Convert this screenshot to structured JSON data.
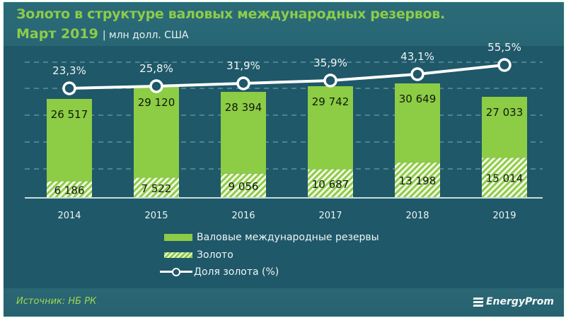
{
  "header": {
    "title": "Золото в структуре валовых международных резервов.",
    "subtitle": "Март 2019",
    "units": "| млн долл. США"
  },
  "footer": {
    "source": "Источник: НБ РК",
    "logo": "EnergyProm"
  },
  "legend": {
    "items": [
      {
        "label": "Валовые международные резервы",
        "swatch": "solid"
      },
      {
        "label": "Золото",
        "swatch": "hatched"
      },
      {
        "label": "Доля золота (%)",
        "swatch": "line-marker"
      }
    ]
  },
  "colors": {
    "background": "#1f5868",
    "header_band": "#2a6875",
    "title": "#8ccc4a",
    "reserves_bar": "#8dcc45",
    "gold_hatch_light": "#f3f8e8",
    "line": "#ffffff",
    "gridline": "#5f93a0"
  },
  "chart_data": {
    "type": "bar",
    "subtype": "stacked bar + line",
    "title": "Золото в структуре валовых международных резервов. Март 2019",
    "units": "млн долл. США",
    "xlabel": "",
    "ylabel": "",
    "categories": [
      "2014",
      "2015",
      "2016",
      "2017",
      "2018",
      "2019"
    ],
    "series": [
      {
        "name": "Золото",
        "type": "bar",
        "style": "hatched",
        "values": [
          6186,
          7522,
          9056,
          10687,
          13198,
          15014
        ],
        "labels": [
          "6 186",
          "7 522",
          "9 056",
          "10 687",
          "13 198",
          "15 014"
        ]
      },
      {
        "name": "Валовые международные резервы",
        "type": "bar",
        "style": "solid",
        "values": [
          26517,
          29120,
          28394,
          29742,
          30649,
          27033
        ],
        "labels": [
          "26 517",
          "29 120",
          "28 394",
          "29 742",
          "30 649",
          "27 033"
        ]
      },
      {
        "name": "Доля золота (%)",
        "type": "line",
        "values": [
          23.3,
          25.8,
          31.9,
          35.9,
          43.1,
          55.5
        ],
        "labels": [
          "23,3%",
          "25,8%",
          "31,9%",
          "35,9%",
          "43,1%",
          "55,5%"
        ]
      }
    ],
    "grid": true,
    "legend_position": "bottom"
  }
}
